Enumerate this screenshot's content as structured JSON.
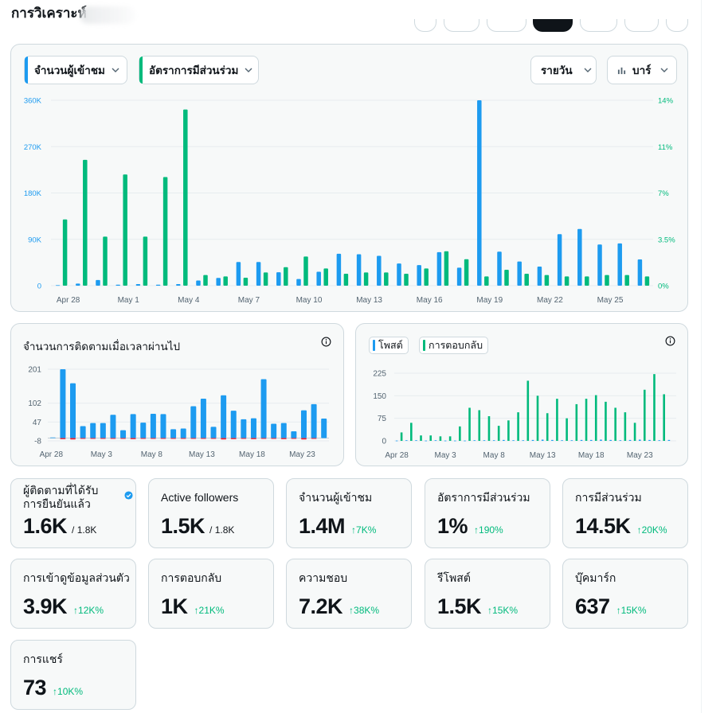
{
  "header": {
    "title": "การวิเคราะห์"
  },
  "colors": {
    "blue": "#1d9bf0",
    "green": "#00ba7c",
    "red": "#f4212e",
    "grid": "#e7ecef",
    "axis": "#536471"
  },
  "main_chart": {
    "metric1_label": "จำนวนผู้เข้าชม",
    "metric2_label": "อัตราการมีส่วนร่วม",
    "period_label": "รายวัน",
    "charttype_label": "บาร์",
    "icons": {
      "chevron": "chevron-down-icon",
      "bar": "bar-chart-icon"
    }
  },
  "followers_chart": {
    "title": "จำนวนการติดตามเมื่อเวลาผ่านไป"
  },
  "posts_chart": {
    "legend_posts": "โพสต์",
    "legend_replies": "การตอบกลับ"
  },
  "stats": [
    {
      "label": "ผู้ติดตามที่ได้รับการยืนยันแล้ว",
      "value": "1.6K",
      "sub": "/ 1.8K"
    },
    {
      "label": "Active followers",
      "value": "1.5K",
      "sub": "/ 1.8K"
    },
    {
      "label": "จำนวนผู้เข้าชม",
      "value": "1.4M",
      "delta": "7K%"
    },
    {
      "label": "อัตราการมีส่วนร่วม",
      "value": "1%",
      "delta": "190%"
    },
    {
      "label": "การมีส่วนร่วม",
      "value": "14.5K",
      "delta": "20K%"
    },
    {
      "label": "การเข้าดูข้อมูลส่วนตัว",
      "value": "3.9K",
      "delta": "12K%"
    },
    {
      "label": "การตอบกลับ",
      "value": "1K",
      "delta": "21K%"
    },
    {
      "label": "ความชอบ",
      "value": "7.2K",
      "delta": "38K%"
    },
    {
      "label": "รีโพสต์",
      "value": "1.5K",
      "delta": "15K%"
    },
    {
      "label": "บุ๊คมาร์ก",
      "value": "637",
      "delta": "15K%"
    },
    {
      "label": "การแชร์",
      "value": "73",
      "delta": "10K%"
    }
  ],
  "chart_data": [
    {
      "type": "bar",
      "x_ticks": [
        "Apr 28",
        "May 1",
        "May 4",
        "May 7",
        "May 10",
        "May 13",
        "May 16",
        "May 19",
        "May 22",
        "May 25"
      ],
      "y_left_ticks": [
        "0",
        "90K",
        "180K",
        "270K",
        "360K"
      ],
      "y_right_ticks": [
        "0%",
        "3.5%",
        "7%",
        "11%",
        "14%"
      ],
      "y_left_lim": [
        0,
        360000
      ],
      "y_right_lim": [
        0,
        14
      ],
      "series": [
        {
          "axis": "left",
          "values": [
            1000,
            4000,
            11000,
            2000,
            3000,
            2000,
            3000,
            10000,
            15000,
            46000,
            46000,
            26000,
            13000,
            27000,
            62000,
            61000,
            58000,
            43000,
            40000,
            65000,
            35000,
            360000,
            66000,
            47000,
            37000,
            100000,
            110000,
            80000,
            82000,
            51000
          ]
        },
        {
          "axis": "right",
          "values": [
            5.0,
            9.5,
            3.7,
            8.4,
            3.7,
            8.2,
            13.3,
            0.8,
            0.7,
            0.6,
            1.0,
            1.4,
            2.2,
            1.3,
            0.9,
            1.0,
            1.0,
            0.9,
            1.3,
            2.6,
            2.0,
            0.7,
            1.2,
            0.9,
            0.8,
            0.7,
            0.7,
            0.8,
            0.8,
            0.7
          ]
        }
      ]
    },
    {
      "type": "bar",
      "title": "จำนวนการติดตามเมื่อเวลาผ่านไป",
      "x_ticks": [
        "Apr 28",
        "May 3",
        "May 8",
        "May 13",
        "May 18",
        "May 23"
      ],
      "y_ticks": [
        "-8",
        "47",
        "102",
        "201"
      ],
      "ylim": [
        -8,
        201
      ],
      "series": [
        {
          "name": "positive",
          "values": [
            2,
            201,
            160,
            35,
            44,
            44,
            68,
            23,
            70,
            45,
            71,
            70,
            26,
            28,
            93,
            115,
            33,
            125,
            80,
            55,
            58,
            172,
            42,
            44,
            20,
            81,
            99,
            57
          ]
        },
        {
          "name": "negative",
          "values": [
            0,
            -3,
            -4,
            -2,
            -2,
            -2,
            -2,
            -1,
            -3,
            -1,
            -2,
            -2,
            -1,
            -2,
            -2,
            -2,
            -2,
            -4,
            -3,
            -2,
            -3,
            -2,
            -2,
            -3,
            -2,
            -4,
            -2,
            0
          ]
        }
      ]
    },
    {
      "type": "bar",
      "x_ticks": [
        "Apr 28",
        "May 3",
        "May 8",
        "May 13",
        "May 18",
        "May 23"
      ],
      "y_ticks": [
        "0",
        "75",
        "150",
        "225"
      ],
      "ylim": [
        0,
        225
      ],
      "series": [
        {
          "name": "โพสต์",
          "values": [
            1,
            2,
            2,
            1,
            2,
            1,
            1,
            1,
            2,
            2,
            2,
            3,
            2,
            2,
            3,
            4,
            3,
            2,
            2,
            3,
            3,
            4,
            3,
            2,
            3,
            4,
            3,
            2,
            3
          ]
        },
        {
          "name": "การตอบกลับ",
          "values": [
            28,
            60,
            18,
            18,
            15,
            15,
            48,
            110,
            102,
            82,
            50,
            68,
            95,
            200,
            150,
            92,
            140,
            75,
            122,
            140,
            152,
            130,
            110,
            95,
            60,
            170,
            222,
            155,
            0
          ]
        }
      ]
    }
  ]
}
